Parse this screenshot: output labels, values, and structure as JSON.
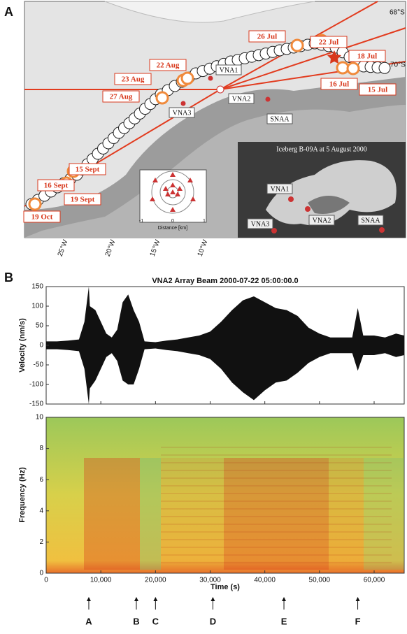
{
  "panel_a": {
    "label": "A",
    "dates": [
      "26 Jul",
      "22 Jul",
      "18 Jul",
      "16 Jul",
      "15 Jul",
      "22 Aug",
      "23 Aug",
      "27 Aug",
      "15 Sept",
      "16 Sept",
      "19 Sept",
      "19 Oct"
    ],
    "stations": [
      "VNA1",
      "VNA2",
      "VNA3",
      "SNAA"
    ],
    "latitudes": [
      "68°S",
      "70°S"
    ],
    "longitudes": [
      "25°W",
      "20°W",
      "15°W",
      "10°W"
    ],
    "inset_title": "Iceberg B-09A at 5 August 2000",
    "inset_stations": [
      "VNA1",
      "VNA2",
      "VNA3",
      "SNAA"
    ],
    "array_xlabel": "Distance [km]",
    "array_ticks": [
      "-1",
      "0",
      "1"
    ]
  },
  "panel_b": {
    "label": "B",
    "title": "VNA2 Array Beam 2000-07-22 05:00:00.0",
    "xlabel": "Time (s)",
    "xlim": [
      0,
      65500
    ],
    "xticks": [
      0,
      {
        "value": 10000,
        "label": "10,000"
      },
      {
        "value": 20000,
        "label": "20,000"
      },
      {
        "value": 30000,
        "label": "30,000"
      },
      {
        "value": 40000,
        "label": "40,000"
      },
      {
        "value": 50000,
        "label": "50,000"
      },
      {
        "value": 60000,
        "label": "60,000"
      }
    ],
    "seismogram": {
      "ylabel": "Velocity (nm/s)",
      "ylim": [
        -150,
        150
      ],
      "yticks": [
        150,
        100,
        50,
        0,
        -50,
        -100,
        -150
      ],
      "color": "#111111",
      "t": [
        0,
        2000,
        4000,
        6000,
        7000,
        7800,
        8000,
        9000,
        10000,
        11000,
        12000,
        13000,
        14000,
        15000,
        16000,
        17000,
        18000,
        20000,
        22000,
        24000,
        26000,
        28000,
        30000,
        32000,
        34000,
        36000,
        38000,
        40000,
        42000,
        44000,
        46000,
        48000,
        50000,
        52000,
        54000,
        56000,
        57000,
        58000,
        60000,
        62000,
        64000,
        65500
      ],
      "upper": [
        10,
        10,
        12,
        15,
        60,
        150,
        100,
        90,
        60,
        30,
        20,
        40,
        110,
        130,
        90,
        60,
        10,
        8,
        12,
        15,
        20,
        25,
        35,
        60,
        90,
        115,
        125,
        110,
        95,
        90,
        75,
        45,
        30,
        20,
        20,
        20,
        95,
        25,
        25,
        20,
        30,
        25
      ],
      "lower": [
        -10,
        -10,
        -12,
        -15,
        -60,
        -150,
        -110,
        -90,
        -60,
        -30,
        -20,
        -40,
        -90,
        -100,
        -100,
        -60,
        -10,
        -8,
        -12,
        -15,
        -20,
        -25,
        -35,
        -60,
        -95,
        -120,
        -140,
        -115,
        -95,
        -90,
        -70,
        -45,
        -30,
        -20,
        -20,
        -20,
        -65,
        -25,
        -25,
        -20,
        -30,
        -25
      ]
    },
    "spectrogram": {
      "ylabel": "Frequency (Hz)",
      "ylim": [
        0,
        10
      ],
      "yticks": [
        0,
        2,
        4,
        6,
        8,
        10
      ]
    },
    "events": [
      {
        "label": "A",
        "time": 7800
      },
      {
        "label": "B",
        "time": 16500
      },
      {
        "label": "C",
        "time": 20000
      },
      {
        "label": "D",
        "time": 30500
      },
      {
        "label": "E",
        "time": 43500
      },
      {
        "label": "F",
        "time": 57000
      }
    ]
  }
}
